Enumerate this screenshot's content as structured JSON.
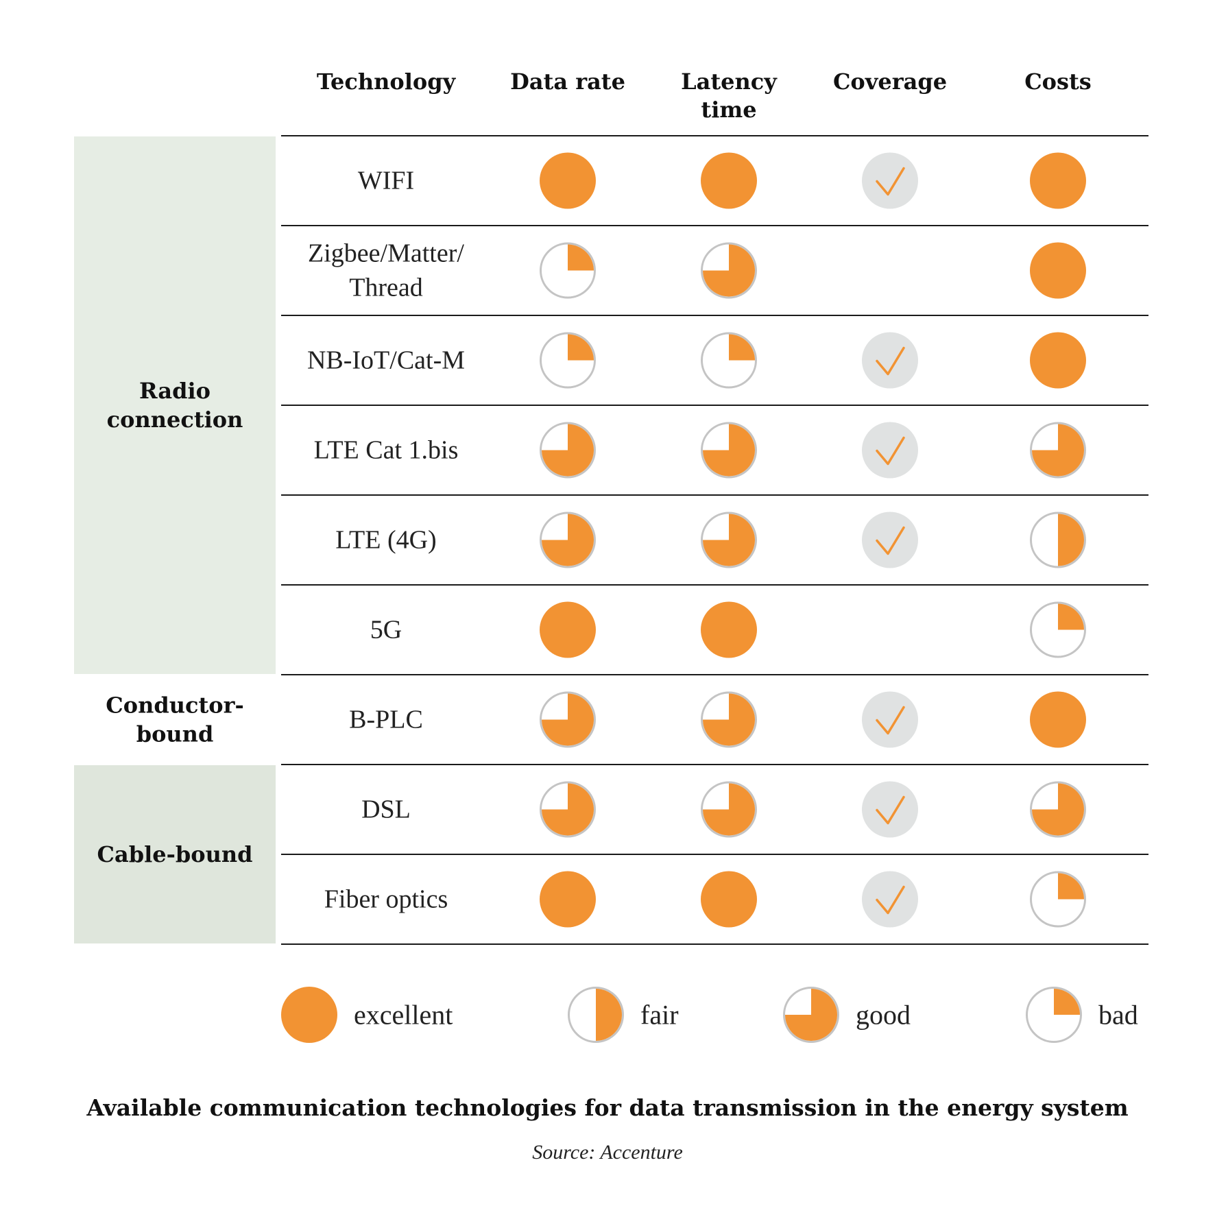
{
  "colors": {
    "orange": "#f29333",
    "ring": "#c4c4c4",
    "check_bg": "#e0e2e2",
    "radio_bg": "#e6ede4",
    "cable_bg": "#dfe6dc",
    "rule": "#1a1a1a"
  },
  "chart_data": {
    "type": "table",
    "title": "Available communication technologies for data transmission in the energy system",
    "source": "Source: Accenture",
    "columns": [
      {
        "key": "technology",
        "lines": [
          "Technology"
        ]
      },
      {
        "key": "data_rate",
        "lines": [
          "Data rate"
        ]
      },
      {
        "key": "latency",
        "lines": [
          "Latency",
          "time"
        ]
      },
      {
        "key": "coverage",
        "lines": [
          "Coverage"
        ]
      },
      {
        "key": "costs",
        "lines": [
          "Costs"
        ]
      }
    ],
    "groups": [
      {
        "name": "radio",
        "lines": [
          "Radio",
          "connection"
        ],
        "shaded": true,
        "first_row": 0,
        "row_count": 6
      },
      {
        "name": "conductor",
        "lines": [
          "Conductor-",
          "bound"
        ],
        "shaded": false,
        "first_row": 6,
        "row_count": 1
      },
      {
        "name": "cable",
        "lines": [
          "Cable-bound"
        ],
        "shaded": true,
        "first_row": 7,
        "row_count": 2
      }
    ],
    "rows": [
      {
        "technology": [
          "WIFI"
        ],
        "data_rate": "excellent",
        "latency": "excellent",
        "coverage": "check",
        "costs": "excellent"
      },
      {
        "technology": [
          "Zigbee/Matter/",
          "Thread"
        ],
        "data_rate": "bad",
        "latency": "good",
        "coverage": "none",
        "costs": "excellent"
      },
      {
        "technology": [
          "NB-IoT/Cat-M"
        ],
        "data_rate": "bad",
        "latency": "bad",
        "coverage": "check",
        "costs": "excellent"
      },
      {
        "technology": [
          "LTE Cat 1.bis"
        ],
        "data_rate": "good",
        "latency": "good",
        "coverage": "check",
        "costs": "good"
      },
      {
        "technology": [
          "LTE (4G)"
        ],
        "data_rate": "good",
        "latency": "good",
        "coverage": "check",
        "costs": "fair"
      },
      {
        "technology": [
          "5G"
        ],
        "data_rate": "excellent",
        "latency": "excellent",
        "coverage": "none",
        "costs": "bad"
      },
      {
        "technology": [
          "B-PLC"
        ],
        "data_rate": "good",
        "latency": "good",
        "coverage": "check",
        "costs": "excellent"
      },
      {
        "technology": [
          "DSL"
        ],
        "data_rate": "good",
        "latency": "good",
        "coverage": "check",
        "costs": "good"
      },
      {
        "technology": [
          "Fiber optics"
        ],
        "data_rate": "excellent",
        "latency": "excellent",
        "coverage": "check",
        "costs": "bad"
      }
    ],
    "rating_fill": {
      "excellent": 1.0,
      "good": 0.75,
      "fair": 0.5,
      "bad": 0.25
    },
    "legend": [
      {
        "rating": "excellent",
        "label": "excellent"
      },
      {
        "rating": "fair",
        "label": "fair"
      },
      {
        "rating": "good",
        "label": "good"
      },
      {
        "rating": "bad",
        "label": "bad"
      }
    ]
  }
}
